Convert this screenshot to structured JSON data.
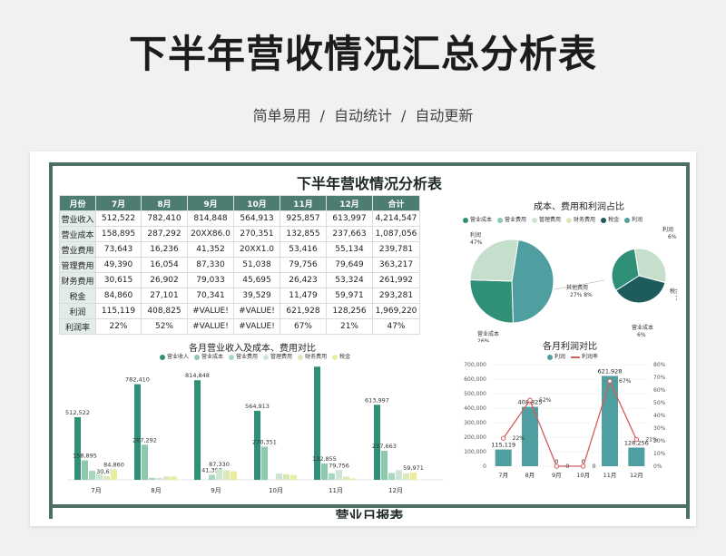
{
  "hero": {
    "title": "下半年营收情况汇总分析表",
    "subtitle_parts": [
      "简单易用",
      "/",
      "自动统计",
      "/",
      "自动更新"
    ]
  },
  "sheet": {
    "title": "下半年营收情况分析表",
    "footer_title": "营业日报表"
  },
  "table": {
    "headers": [
      "月份",
      "7月",
      "8月",
      "9月",
      "10月",
      "11月",
      "12月",
      "合计"
    ],
    "rows": [
      [
        "营业收入",
        "512,522",
        "782,410",
        "814,848",
        "564,913",
        "925,857",
        "613,997",
        "4,214,547"
      ],
      [
        "营业成本",
        "158,895",
        "287,292",
        "20XX86.0",
        "270,351",
        "132,855",
        "237,663",
        "1,087,056"
      ],
      [
        "营业费用",
        "73,643",
        "16,236",
        "41,352",
        "20XX1.0",
        "53,416",
        "55,134",
        "239,781"
      ],
      [
        "管理费用",
        "49,390",
        "16,054",
        "87,330",
        "51,038",
        "79,756",
        "79,649",
        "363,217"
      ],
      [
        "财务费用",
        "30,615",
        "26,902",
        "79,033",
        "45,695",
        "26,423",
        "53,324",
        "261,992"
      ],
      [
        "税金",
        "84,860",
        "27,101",
        "70,341",
        "39,529",
        "11,479",
        "59,971",
        "293,281"
      ],
      [
        "利润",
        "115,119",
        "408,825",
        "#VALUE!",
        "#VALUE!",
        "621,928",
        "128,256",
        "1,969,220"
      ],
      [
        "利润率",
        "22%",
        "52%",
        "#VALUE!",
        "#VALUE!",
        "67%",
        "21%",
        "47%"
      ]
    ]
  },
  "colors": {
    "income": "#2f8f77",
    "cost": "#8fc9ad",
    "op_expense": "#a9d6bf",
    "mgmt_expense": "#cde6d3",
    "fin_expense": "#dbe9b8",
    "tax": "#e8ee9c",
    "profit": "#4f9fa0",
    "rate": "#d65b5b",
    "pie_cost": "#2f8f77",
    "pie_rest": "#c6dfcc",
    "pie_profit": "#1e5c5c"
  },
  "chart_data": [
    {
      "type": "pie",
      "title": "成本、费用和利润占比",
      "legend": [
        "营业成本",
        "营业费用",
        "管理费用",
        "财务费用",
        "税金",
        "利润"
      ],
      "slices": [
        {
          "name": "利润",
          "value": 47,
          "label": "利润\n47%"
        },
        {
          "name": "营业成本",
          "value": 26,
          "label": "营业成本\n26%"
        },
        {
          "name": "其余费用",
          "value": 27,
          "label": "其他费用\n27% 8%"
        }
      ],
      "small_slices": [
        {
          "name": "利润",
          "value": 6,
          "label": "利润\n6%"
        },
        {
          "name": "税金",
          "value": 7,
          "label": "税金\n7%"
        },
        {
          "name": "营业成本",
          "value": 6,
          "label": "营业成本\n6%"
        }
      ]
    },
    {
      "type": "bar",
      "title": "各月营业收入及成本、费用对比",
      "categories": [
        "7月",
        "8月",
        "9月",
        "10月",
        "11月",
        "12月"
      ],
      "ylim": [
        0,
        950000
      ],
      "series": [
        {
          "name": "营业收入",
          "values": [
            512522,
            782410,
            814848,
            564913,
            925857,
            613997
          ],
          "labels": [
            "512,522",
            "782,410",
            "814,848",
            "564,913",
            "",
            "613,997"
          ]
        },
        {
          "name": "营业成本",
          "values": [
            158895,
            287292,
            0,
            270351,
            132855,
            237663
          ],
          "labels": [
            "158,895",
            "287,292",
            "",
            "270,351",
            "132,855",
            "237,663"
          ]
        },
        {
          "name": "营业费用",
          "values": [
            73643,
            16236,
            41352,
            0,
            53416,
            55134
          ],
          "labels": [
            "",
            "",
            "41,352",
            "",
            "",
            ""
          ]
        },
        {
          "name": "管理费用",
          "values": [
            49390,
            16054,
            87330,
            51038,
            79756,
            79649
          ],
          "labels": [
            "",
            "",
            "87,330",
            "",
            "79,756",
            ""
          ]
        },
        {
          "name": "财务费用",
          "values": [
            30615,
            26902,
            79033,
            45695,
            26423,
            53324
          ],
          "labels": [
            "30,615",
            "",
            "",
            "",
            "",
            ""
          ]
        },
        {
          "name": "税金",
          "values": [
            84860,
            27101,
            70341,
            39529,
            11479,
            59971
          ],
          "labels": [
            "84,860",
            "",
            "",
            "",
            "",
            "59,971"
          ]
        }
      ]
    },
    {
      "type": "bar",
      "title": "各月利润对比",
      "categories": [
        "7月",
        "8月",
        "9月",
        "10月",
        "11月",
        "12月"
      ],
      "ylim": [
        0,
        700000
      ],
      "y2lim": [
        0,
        0.8
      ],
      "yticks": [
        "700,000",
        "600,000",
        "500,000",
        "400,000",
        "300,000",
        "200,000",
        "100,000",
        "0"
      ],
      "y2ticks": [
        "80%",
        "70%",
        "60%",
        "50%",
        "40%",
        "30%",
        "20%",
        "10%",
        "0%"
      ],
      "series": [
        {
          "name": "利润",
          "values": [
            115119,
            408825,
            0,
            0,
            621928,
            128256
          ],
          "labels": [
            "115,119",
            "408,825",
            "0",
            "0",
            "621,928",
            "128,256"
          ]
        },
        {
          "name": "利润率",
          "values": [
            0.22,
            0.52,
            0,
            0,
            0.67,
            0.21
          ],
          "labels": [
            "22%",
            "52%",
            "0",
            "0",
            "67%",
            "21%"
          ]
        }
      ]
    }
  ]
}
